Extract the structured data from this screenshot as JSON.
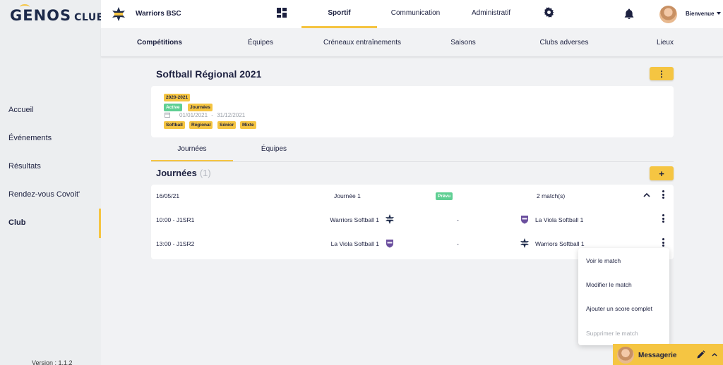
{
  "brand": {
    "name_big": "GENOS",
    "name_small": "CLUBS"
  },
  "sidebar": {
    "items": [
      {
        "label": "Accueil",
        "active": false
      },
      {
        "label": "Événements",
        "active": false
      },
      {
        "label": "Résultats",
        "active": false
      },
      {
        "label": "Rendez-vous Covoit'",
        "active": false
      },
      {
        "label": "Club",
        "active": true
      }
    ],
    "version": "Version : 1.1.2"
  },
  "header": {
    "club_name": "Warriors BSC",
    "tabs": [
      {
        "label": "Sportif",
        "active": true
      },
      {
        "label": "Communication",
        "active": false
      },
      {
        "label": "Administratif",
        "active": false
      }
    ],
    "welcome": "Bienvenue"
  },
  "subnav": {
    "items": [
      {
        "label": "Compétitions",
        "active": true
      },
      {
        "label": "Équipes"
      },
      {
        "label": "Créneaux entraînements"
      },
      {
        "label": "Saisons"
      },
      {
        "label": "Clubs adverses"
      },
      {
        "label": "Lieux"
      }
    ]
  },
  "competition": {
    "title": "Softball Régional 2021",
    "menu_button": "⋮",
    "season_chip": "2020-2021",
    "status_chip": "Active",
    "type_chip": "Journées",
    "date_start": "01/01/2021",
    "date_sep": "-",
    "date_end": "31/12/2021",
    "tags": [
      "Softball",
      "Régional",
      "Sénior",
      "Mixte"
    ]
  },
  "tabs": [
    {
      "label": "Journées",
      "active": true
    },
    {
      "label": "Équipes",
      "active": false
    }
  ],
  "journees": {
    "title": "Journées",
    "count": "(1)",
    "add_button": "+",
    "day": {
      "date": "16/05/21",
      "name": "Journée 1",
      "status": "Prévu",
      "matches_count": "2 match(s)"
    },
    "matches": [
      {
        "time": "10:00 - J1SR1",
        "home": "Warriors Softball 1",
        "score": "-",
        "away": "La Viola Softball 1"
      },
      {
        "time": "13:00 - J1SR2",
        "home": "La Viola Softball 1",
        "score": "-",
        "away": "Warriors Softball 1"
      }
    ]
  },
  "context_menu": {
    "items": [
      {
        "label": "Voir le match",
        "disabled": false
      },
      {
        "label": "Modifier le match",
        "disabled": false
      },
      {
        "label": "Ajouter un score complet",
        "disabled": false
      },
      {
        "label": "Supprimer le match",
        "disabled": true
      }
    ]
  },
  "messaging": {
    "label": "Messagerie"
  },
  "colors": {
    "accent": "#f5c542",
    "navy": "#1d2140",
    "success": "#5fcf93",
    "viola": "#6b4f9e"
  },
  "icons": [
    "dashboard-icon",
    "gear-icon",
    "bell-icon",
    "calendar-icon",
    "kebab-icon",
    "chevron-up-icon",
    "pencil-icon",
    "chevron-up-icon"
  ]
}
